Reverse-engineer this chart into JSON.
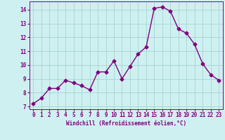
{
  "x": [
    0,
    1,
    2,
    3,
    4,
    5,
    6,
    7,
    8,
    9,
    10,
    11,
    12,
    13,
    14,
    15,
    16,
    17,
    18,
    19,
    20,
    21,
    22,
    23
  ],
  "y": [
    7.2,
    7.6,
    8.3,
    8.3,
    8.9,
    8.7,
    8.5,
    8.2,
    9.5,
    9.5,
    10.3,
    9.0,
    9.9,
    10.8,
    11.3,
    14.1,
    14.2,
    13.9,
    12.6,
    12.3,
    11.5,
    10.1,
    9.3,
    8.9
  ],
  "line_color": "#800080",
  "marker": "D",
  "marker_size": 2.5,
  "linewidth": 1.0,
  "bg_color": "#cff0f0",
  "grid_color": "#aad8d8",
  "xlabel": "Windchill (Refroidissement éolien,°C)",
  "xlabel_fontsize": 5.5,
  "ylabel_ticks": [
    7,
    8,
    9,
    10,
    11,
    12,
    13,
    14
  ],
  "xticks": [
    0,
    1,
    2,
    3,
    4,
    5,
    6,
    7,
    8,
    9,
    10,
    11,
    12,
    13,
    14,
    15,
    16,
    17,
    18,
    19,
    20,
    21,
    22,
    23
  ],
  "ylim": [
    6.8,
    14.6
  ],
  "xlim": [
    -0.5,
    23.5
  ],
  "tick_fontsize": 5.5,
  "tick_color": "#800080",
  "spine_color": "#800080"
}
